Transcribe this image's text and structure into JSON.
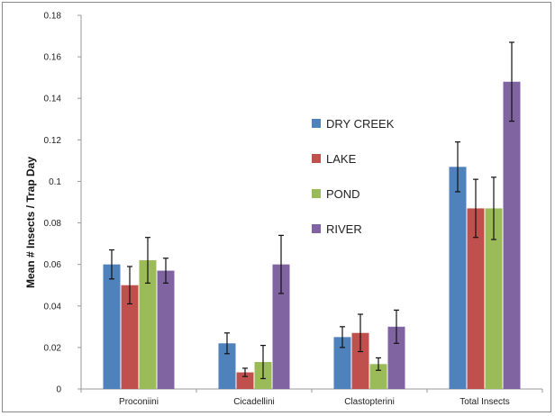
{
  "chart_data": {
    "type": "bar",
    "title": "",
    "xlabel": "",
    "ylabel": "Mean # Insects / Trap Day",
    "ylim": [
      0,
      0.18
    ],
    "yticks": [
      0,
      0.02,
      0.04,
      0.06,
      0.08,
      0.1,
      0.12,
      0.14,
      0.16,
      0.18
    ],
    "ytick_labels": [
      "0",
      "0.02",
      "0.04",
      "0.06",
      "0.08",
      "0.1",
      "0.12",
      "0.14",
      "0.16",
      "0.18"
    ],
    "grid": false,
    "legend_position": "center",
    "categories": [
      "Proconiini",
      "Cicadellini",
      "Clastopterini",
      "Total Insects"
    ],
    "series": [
      {
        "name": "DRY CREEK",
        "color": "#4f81bd",
        "values": [
          0.06,
          0.022,
          0.025,
          0.107
        ],
        "errors": [
          0.007,
          0.005,
          0.005,
          0.012
        ]
      },
      {
        "name": "LAKE",
        "color": "#c0504d",
        "values": [
          0.05,
          0.008,
          0.027,
          0.087
        ],
        "errors": [
          0.009,
          0.002,
          0.009,
          0.014
        ]
      },
      {
        "name": "POND",
        "color": "#9bbb59",
        "values": [
          0.062,
          0.013,
          0.012,
          0.087
        ],
        "errors": [
          0.011,
          0.008,
          0.003,
          0.015
        ]
      },
      {
        "name": "RIVER",
        "color": "#8064a2",
        "values": [
          0.057,
          0.06,
          0.03,
          0.148
        ],
        "errors": [
          0.006,
          0.014,
          0.008,
          0.019
        ]
      }
    ]
  }
}
